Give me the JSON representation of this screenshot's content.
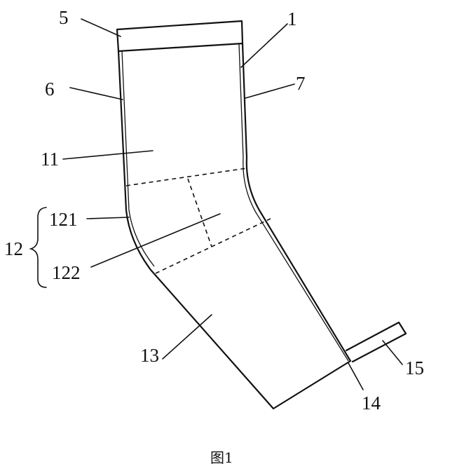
{
  "labels": {
    "l5": "5",
    "l1": "1",
    "l6": "6",
    "l7": "7",
    "l11": "11",
    "l121": "121",
    "l12": "12",
    "l122": "122",
    "l13": "13",
    "l15": "15",
    "l14": "14"
  },
  "caption": "图1"
}
